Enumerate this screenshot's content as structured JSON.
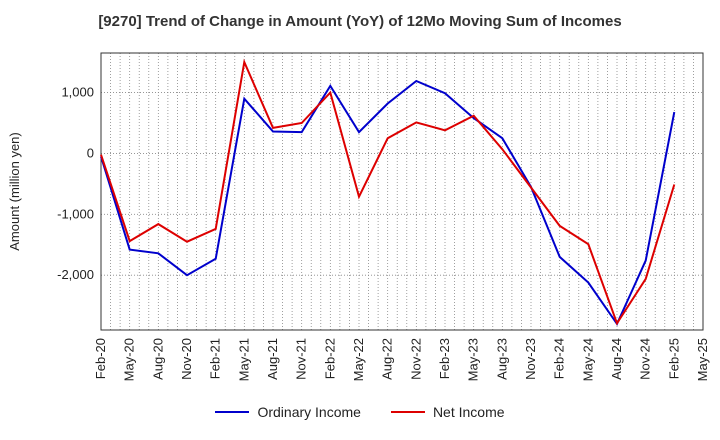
{
  "chart_data": {
    "type": "line",
    "title": "[9270]  Trend of Change in Amount (YoY) of 12Mo Moving Sum of Incomes",
    "ylabel": "Amount (million yen)",
    "xlabel": "",
    "categories": [
      "Feb-20",
      "May-20",
      "Aug-20",
      "Nov-20",
      "Feb-21",
      "May-21",
      "Aug-21",
      "Nov-21",
      "Feb-22",
      "May-22",
      "Aug-22",
      "Nov-22",
      "Feb-23",
      "May-23",
      "Aug-23",
      "Nov-23",
      "Feb-24",
      "May-24",
      "Aug-24",
      "Nov-24",
      "Feb-25",
      "May-25"
    ],
    "ylim": [
      -2900,
      1650
    ],
    "yticks": [
      1000,
      0,
      -1000,
      -2000
    ],
    "ytick_labels": [
      "1,000",
      "0",
      "-1,000",
      "-2,000"
    ],
    "grid": true,
    "legend_position": "bottom",
    "series": [
      {
        "name": "Ordinary Income",
        "color": "#0000cc",
        "values": [
          -50,
          -1580,
          -1640,
          -2000,
          -1730,
          900,
          360,
          350,
          1110,
          350,
          820,
          1190,
          990,
          580,
          250,
          -550,
          -1700,
          -2120,
          -2800,
          -1760,
          680,
          null
        ]
      },
      {
        "name": "Net Income",
        "color": "#dd0000",
        "values": [
          -20,
          -1440,
          -1160,
          -1450,
          -1240,
          1500,
          420,
          500,
          1000,
          -710,
          250,
          510,
          380,
          620,
          70,
          -560,
          -1190,
          -1490,
          -2790,
          -2060,
          -510,
          null
        ]
      }
    ]
  }
}
